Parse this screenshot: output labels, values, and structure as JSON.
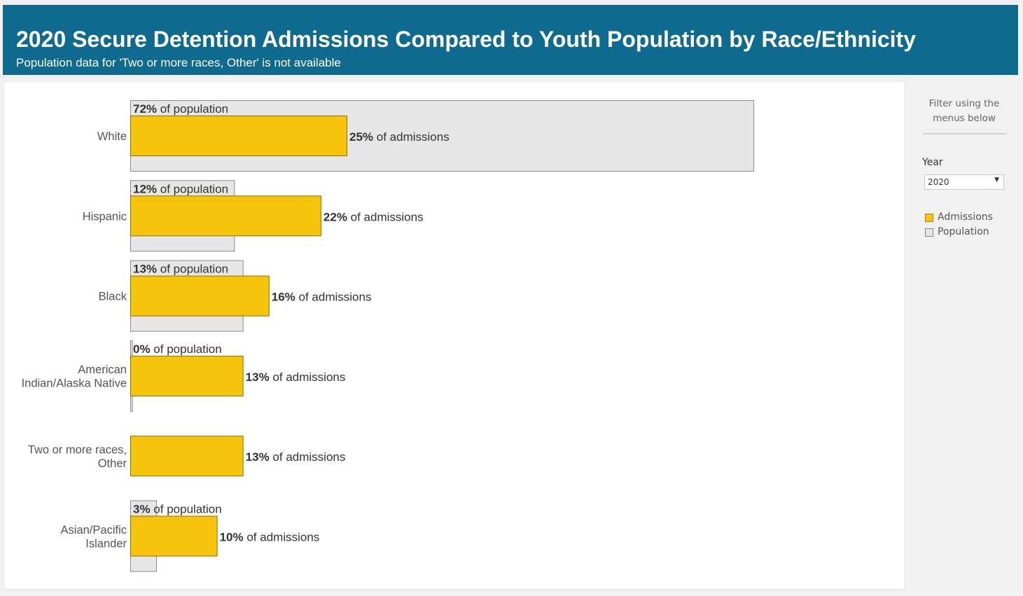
{
  "header": {
    "title": "2020 Secure Detention Admissions Compared to Youth Population by Race/Ethnicity",
    "subtitle": "Population data for 'Two or more races, Other' is not available"
  },
  "sidebar": {
    "filter_note": "Filter using the menus below",
    "year_label": "Year",
    "year_value": "2020",
    "legend": [
      {
        "name": "Admissions",
        "color": "#f8c30c"
      },
      {
        "name": "Population",
        "color": "#e6e6e6"
      }
    ]
  },
  "colors": {
    "admissions": "#f8c30c",
    "population": "#e6e6e6",
    "header_bg": "#0e6a8f"
  },
  "chart_data": {
    "type": "bar",
    "orientation": "horizontal",
    "categories": [
      [
        "White"
      ],
      [
        "Hispanic"
      ],
      [
        "Black"
      ],
      [
        "American",
        "Indian/Alaska Native"
      ],
      [
        "Two or more races,",
        "Other"
      ],
      [
        "Asian/Pacific",
        "Islander"
      ]
    ],
    "series": [
      {
        "name": "Population",
        "values": [
          72,
          12,
          13,
          0,
          null,
          3
        ],
        "label_suffix": "of population"
      },
      {
        "name": "Admissions",
        "values": [
          25,
          22,
          16,
          13,
          13,
          10
        ],
        "label_suffix": "of admissions"
      }
    ],
    "unit": "%",
    "xlim": [
      0,
      100
    ],
    "grid": false,
    "legend": "right"
  }
}
